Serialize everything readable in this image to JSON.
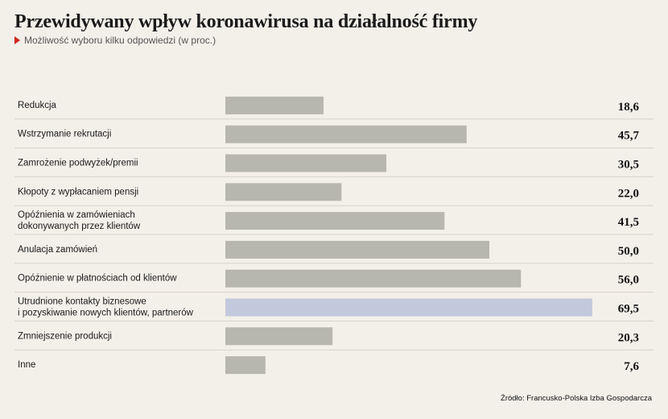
{
  "header": {
    "title": "Przewidywany wpływ koronawirusa na działalność firmy",
    "subtitle": "Możliwość wyboru kilku odpowiedzi (w proc.)"
  },
  "source": "Źródło: Francusko-Polska Izba Gospodarcza",
  "colors": {
    "bar": "#b8b7ae",
    "highlight": "#c3c9dd",
    "divider": "#d6d3cb",
    "accent": "#d0261d"
  },
  "chart_data": {
    "type": "bar",
    "orientation": "horizontal",
    "categories": [
      [
        "Redukcja"
      ],
      [
        "Wstrzymanie rekrutacji"
      ],
      [
        "Zamrożenie podwyżek/premii"
      ],
      [
        "Kłopoty z wypłacaniem pensji"
      ],
      [
        "Opóźnienia w zamówieniach",
        "dokonywanych przez klientów"
      ],
      [
        "Anulacja zamówień"
      ],
      [
        "Opóźnienie w płatnościach od klientów"
      ],
      [
        "Utrudnione kontakty biznesowe",
        "i pozyskiwanie nowych klientów, partnerów"
      ],
      [
        "Zmniejszenie produkcji"
      ],
      [
        "Inne"
      ]
    ],
    "values": [
      18.6,
      45.7,
      30.5,
      22.0,
      41.5,
      50.0,
      56.0,
      69.5,
      20.3,
      7.6
    ],
    "value_labels": [
      "18,6",
      "45,7",
      "30,5",
      "22,0",
      "41,5",
      "50,0",
      "56,0",
      "69,5",
      "20,3",
      "7,6"
    ],
    "highlight_index": 7,
    "xlim": [
      0,
      70
    ]
  }
}
